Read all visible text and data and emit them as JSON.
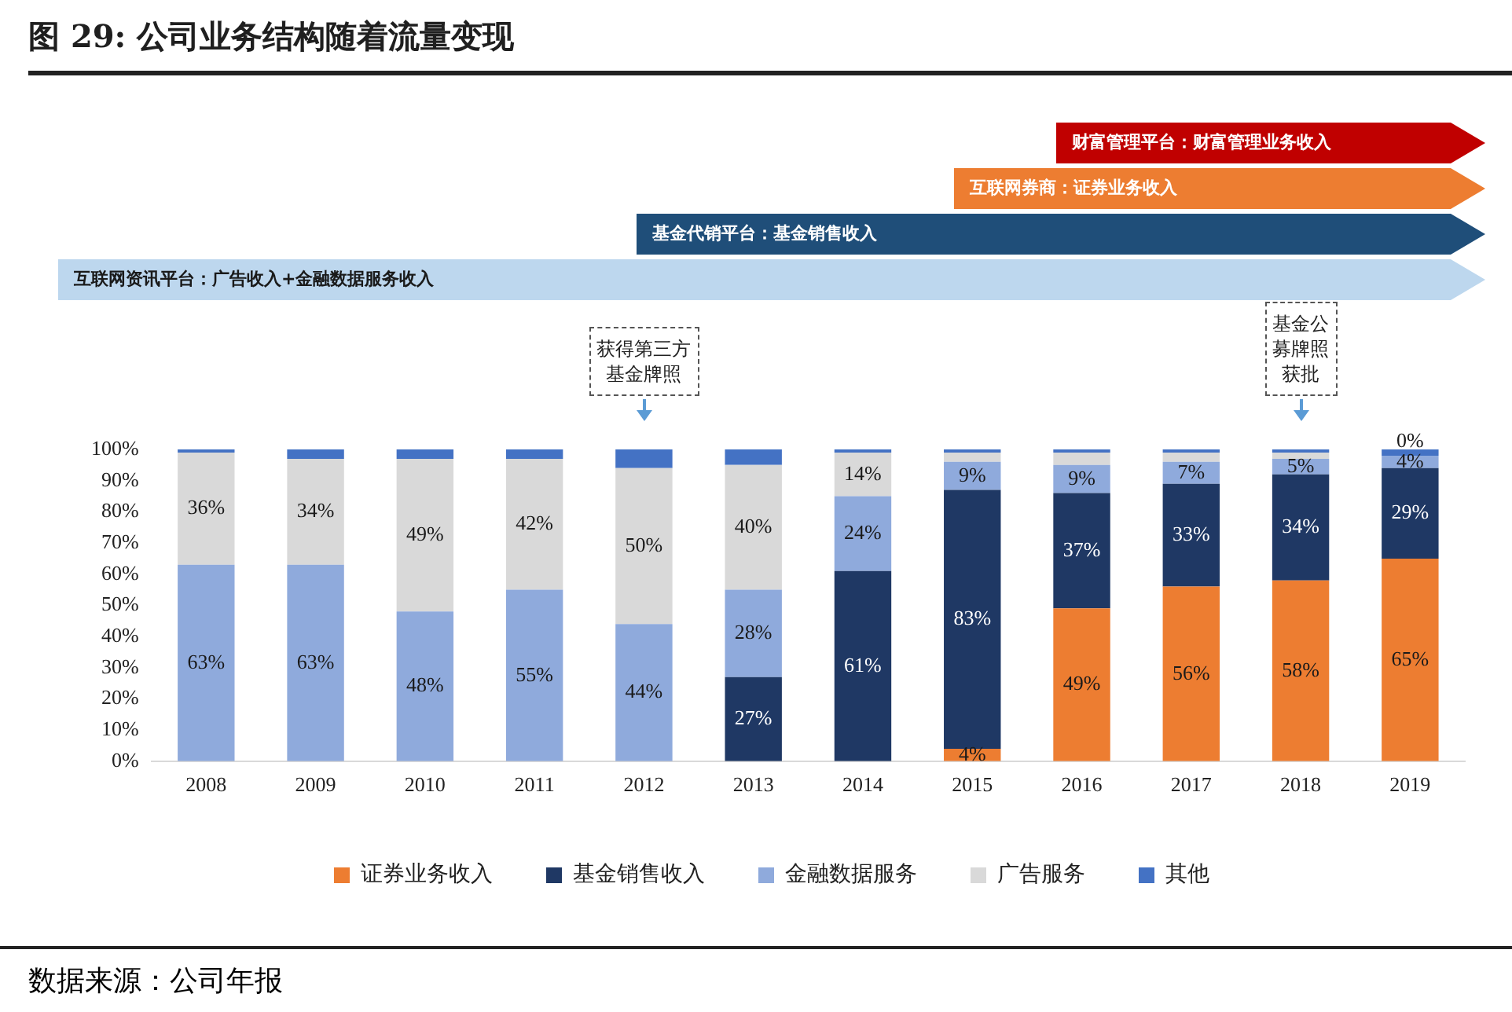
{
  "chart_data": {
    "type": "bar",
    "title": "图 29: 公司业务结构随着流量变现",
    "stacked": true,
    "categories": [
      "2008",
      "2009",
      "2010",
      "2011",
      "2012",
      "2013",
      "2014",
      "2015",
      "2016",
      "2017",
      "2018",
      "2019"
    ],
    "series": [
      {
        "name": "证券业务收入",
        "color": "#ed7d31",
        "values": [
          0,
          0,
          0,
          0,
          0,
          0,
          0,
          4,
          49,
          56,
          58,
          65
        ],
        "value_labels": [
          null,
          null,
          null,
          null,
          null,
          null,
          null,
          "4%",
          "49%",
          "56%",
          "58%",
          "65%"
        ]
      },
      {
        "name": "基金销售收入",
        "color": "#1f3864",
        "values": [
          0,
          0,
          0,
          0,
          0,
          27,
          61,
          83,
          37,
          33,
          34,
          29
        ],
        "value_labels": [
          null,
          null,
          null,
          null,
          null,
          "27%",
          "61%",
          "83%",
          "37%",
          "33%",
          "34%",
          "29%"
        ]
      },
      {
        "name": "金融数据服务",
        "color": "#8faadc",
        "values": [
          63,
          63,
          48,
          55,
          44,
          28,
          24,
          9,
          9,
          7,
          5,
          4
        ],
        "value_labels": [
          "63%",
          "63%",
          "48%",
          "55%",
          "44%",
          "28%",
          "24%",
          "9%",
          "9%",
          "7%",
          "5%",
          "4%"
        ]
      },
      {
        "name": "广告服务",
        "color": "#d9d9d9",
        "values": [
          36,
          34,
          49,
          42,
          50,
          40,
          14,
          3,
          4,
          3,
          2,
          0
        ],
        "value_labels": [
          "36%",
          "34%",
          "49%",
          "42%",
          "50%",
          "40%",
          "14%",
          null,
          null,
          null,
          null,
          "0%"
        ]
      },
      {
        "name": "其他",
        "color": "#4472c4",
        "values": [
          1,
          3,
          3,
          3,
          6,
          5,
          1,
          1,
          1,
          1,
          1,
          2
        ],
        "value_labels": [
          null,
          null,
          null,
          null,
          null,
          null,
          null,
          null,
          null,
          null,
          null,
          null
        ]
      }
    ],
    "ylim": [
      0,
      100
    ],
    "yticks": [
      {
        "value": 0,
        "label": "0%"
      },
      {
        "value": 10,
        "label": "10%"
      },
      {
        "value": 20,
        "label": "20%"
      },
      {
        "value": 30,
        "label": "30%"
      },
      {
        "value": 40,
        "label": "40%"
      },
      {
        "value": 50,
        "label": "50%"
      },
      {
        "value": 60,
        "label": "60%"
      },
      {
        "value": 70,
        "label": "70%"
      },
      {
        "value": 80,
        "label": "80%"
      },
      {
        "value": 90,
        "label": "90%"
      },
      {
        "value": 100,
        "label": "100%"
      }
    ],
    "grid": false,
    "legend": "bottom",
    "annotations": [
      "财富管理平台：财富管理业务收入",
      "互联网券商：证券业务收入",
      "基金代销平台：基金销售收入",
      "互联网资讯平台：广告收入+金融数据服务收入",
      {
        "text": "获得第三方基金牌照",
        "x": "2012"
      },
      {
        "text": "基金公募牌照获批",
        "x": "2018"
      },
      "数据来源：公司年报"
    ]
  }
}
